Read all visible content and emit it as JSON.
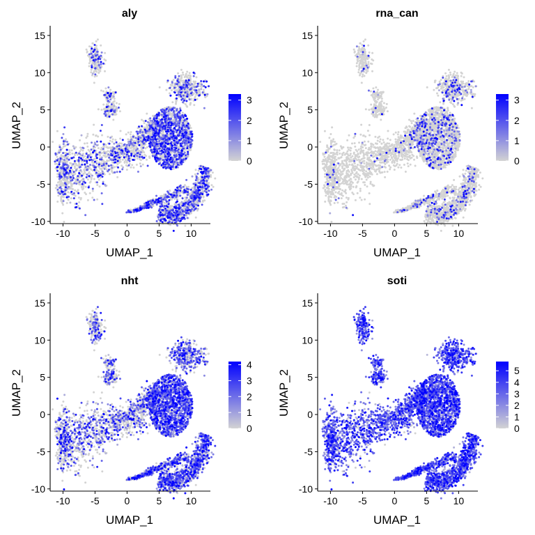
{
  "chart_data": [
    {
      "type": "scatter",
      "title": "aly",
      "xlabel": "UMAP_1",
      "ylabel": "UMAP_2",
      "xlim": [
        -12,
        13
      ],
      "ylim": [
        -10.3,
        16.3
      ],
      "xticks": [
        -10,
        -5,
        0,
        5,
        10
      ],
      "yticks": [
        -10,
        -5,
        0,
        5,
        10,
        15
      ],
      "color_scale": {
        "low": "#d3d3d3",
        "high": "#0000ff",
        "min": 0,
        "max": 3.3,
        "ticks": [
          0,
          1,
          2,
          3
        ]
      },
      "expression_profile": {
        "base_prob": 0.04,
        "region_boost": {
          "arm": 0.3,
          "neck": 0.2,
          "body": 0.5,
          "ring": 0.45,
          "head": 0.25,
          "islandTop": 0.15,
          "islandMid": 0.25
        },
        "intensity": 0.6
      }
    },
    {
      "type": "scatter",
      "title": "rna_can",
      "xlabel": "UMAP_1",
      "ylabel": "UMAP_2",
      "xlim": [
        -12,
        13
      ],
      "ylim": [
        -10.3,
        16.3
      ],
      "xticks": [
        -10,
        -5,
        0,
        5,
        10
      ],
      "yticks": [
        -10,
        -5,
        0,
        5,
        10,
        15
      ],
      "color_scale": {
        "low": "#d3d3d3",
        "high": "#0000ff",
        "min": 0,
        "max": 3.3,
        "ticks": [
          0,
          1,
          2,
          3
        ]
      },
      "expression_profile": {
        "base_prob": 0.02,
        "region_boost": {
          "arm": 0.02,
          "neck": 0.1,
          "body": 0.18,
          "ring": 0.12,
          "head": 0.15,
          "islandTop": 0.08,
          "islandMid": 0.05
        },
        "intensity": 0.55
      }
    },
    {
      "type": "scatter",
      "title": "nht",
      "xlabel": "UMAP_1",
      "ylabel": "UMAP_2",
      "xlim": [
        -12,
        13
      ],
      "ylim": [
        -10.3,
        16.3
      ],
      "xticks": [
        -10,
        -5,
        0,
        5,
        10
      ],
      "yticks": [
        -10,
        -5,
        0,
        5,
        10,
        15
      ],
      "color_scale": {
        "low": "#d3d3d3",
        "high": "#0000ff",
        "min": 0,
        "max": 4.2,
        "ticks": [
          0,
          1,
          2,
          3,
          4
        ]
      },
      "expression_profile": {
        "base_prob": 0.1,
        "region_boost": {
          "arm": 0.35,
          "neck": 0.4,
          "body": 0.75,
          "ring": 0.65,
          "head": 0.5,
          "islandTop": 0.3,
          "islandMid": 0.35
        },
        "intensity": 0.55
      }
    },
    {
      "type": "scatter",
      "title": "soti",
      "xlabel": "UMAP_1",
      "ylabel": "UMAP_2",
      "xlim": [
        -12,
        13
      ],
      "ylim": [
        -10.3,
        16.3
      ],
      "xticks": [
        -10,
        -5,
        0,
        5,
        10
      ],
      "yticks": [
        -10,
        -5,
        0,
        5,
        10,
        15
      ],
      "color_scale": {
        "low": "#d3d3d3",
        "high": "#0000ff",
        "min": 0,
        "max": 5.8,
        "ticks": [
          0,
          1,
          2,
          3,
          4,
          5
        ]
      },
      "expression_profile": {
        "base_prob": 0.75,
        "region_boost": {
          "arm": 0.2,
          "neck": 0.25,
          "body": 0.25,
          "ring": 0.25,
          "head": 0.25,
          "islandTop": 0.25,
          "islandMid": 0.25
        },
        "intensity": 0.55
      }
    }
  ]
}
